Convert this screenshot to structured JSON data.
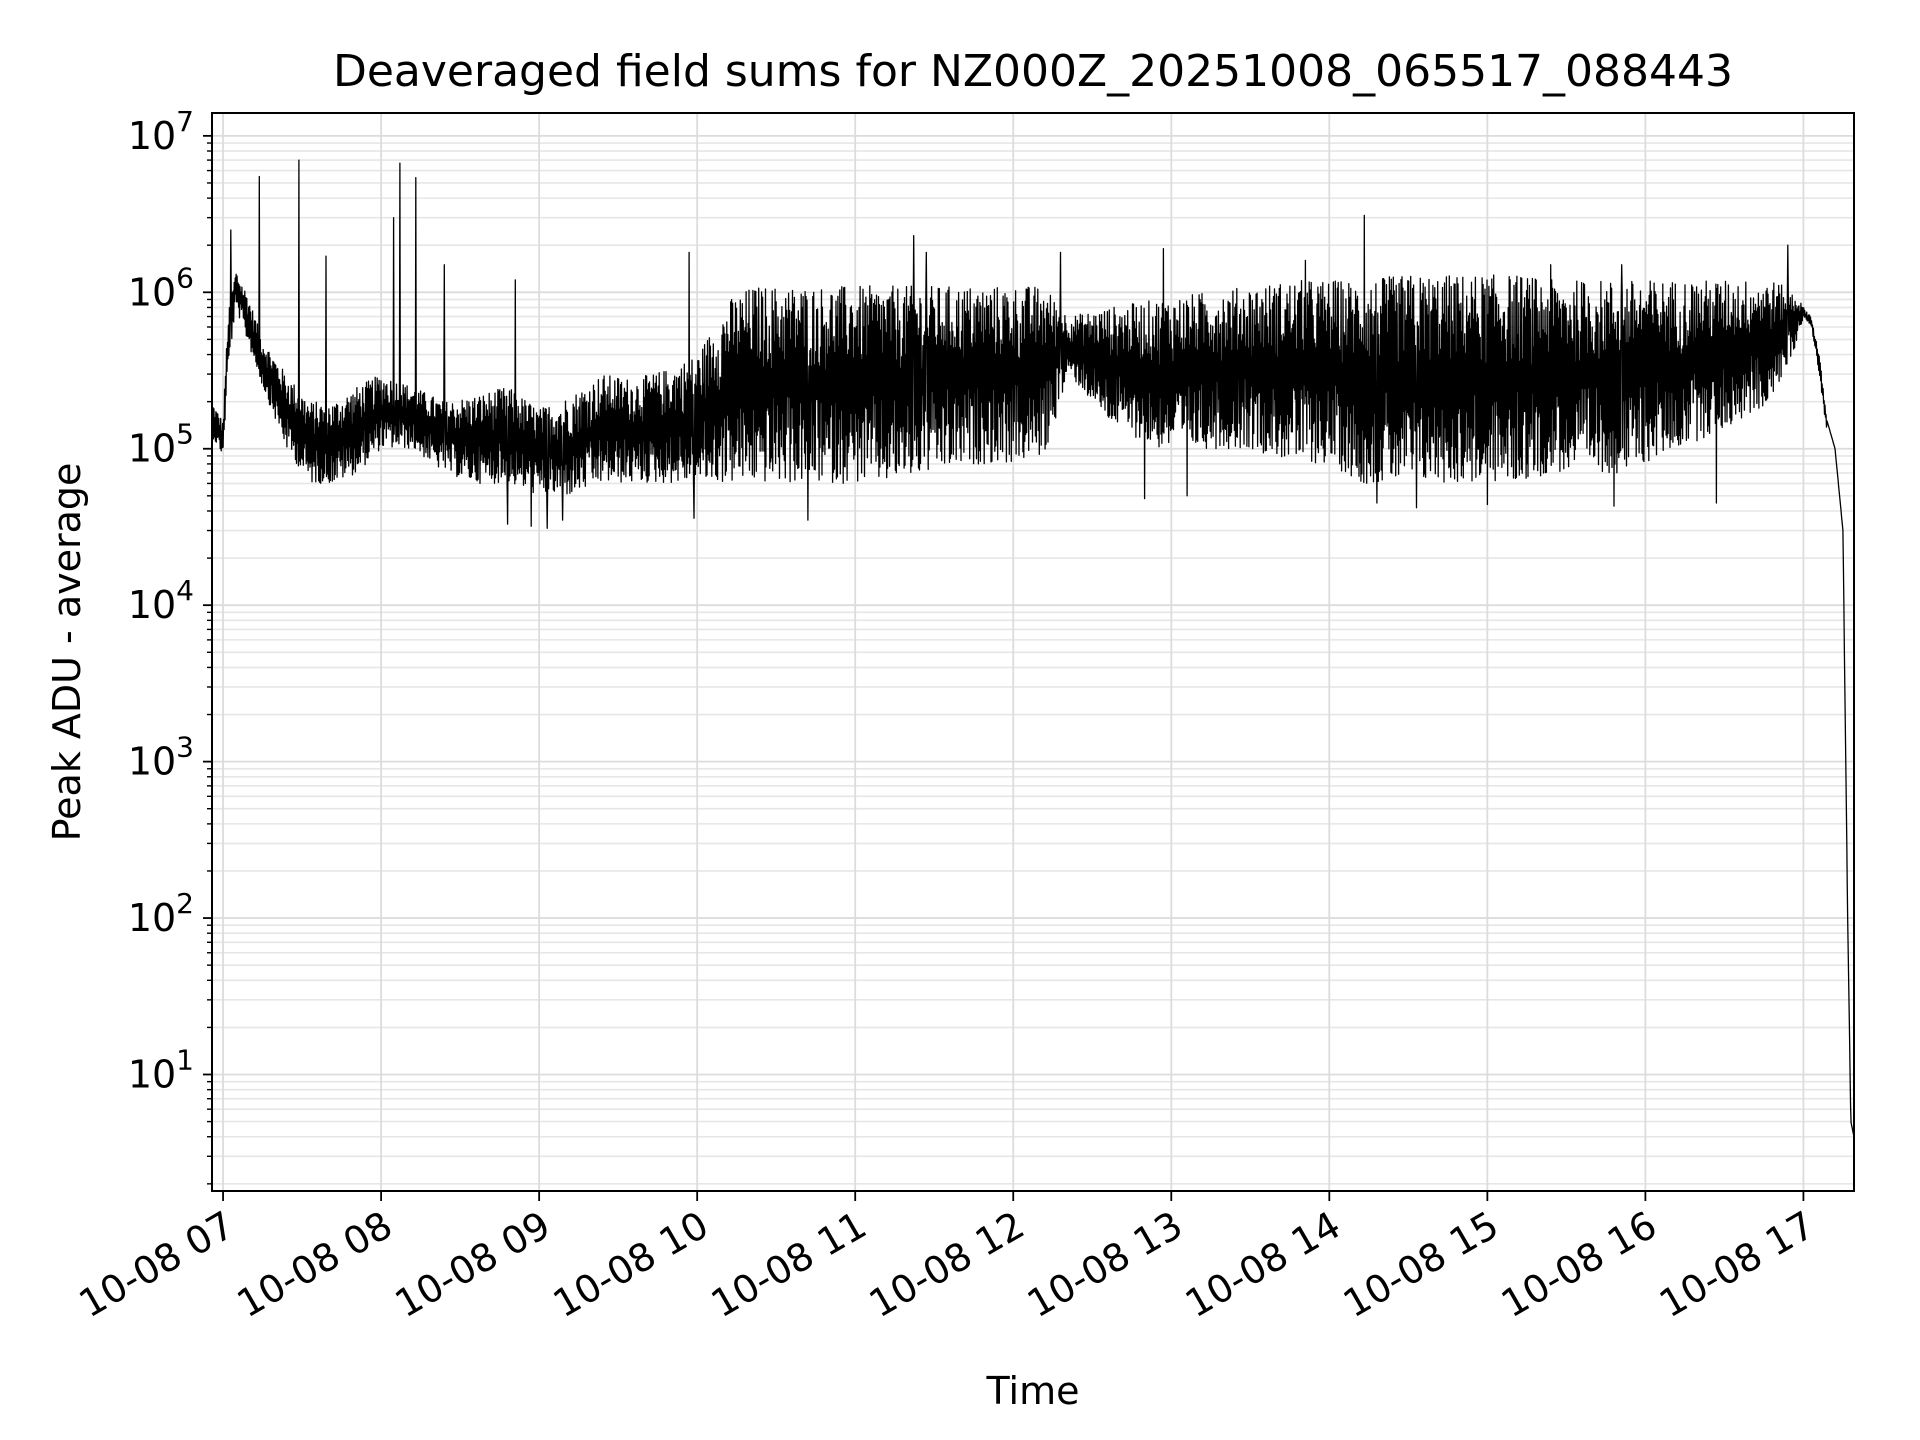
{
  "chart_data": {
    "type": "line",
    "title": "Deaveraged field sums for NZ000Z_20251008_065517_088443",
    "xlabel": "Time",
    "ylabel": "Peak ADU - average",
    "yscale": "log",
    "ylim": [
      1.8,
      14000000
    ],
    "xlim_hours": [
      6.93,
      17.32
    ],
    "grid": true,
    "line_color": "#000000",
    "x_tick_hours": [
      7,
      8,
      9,
      10,
      11,
      12,
      13,
      14,
      15,
      16,
      17
    ],
    "x_tick_labels": [
      "10-08 07",
      "10-08 08",
      "10-08 09",
      "10-08 10",
      "10-08 11",
      "10-08 12",
      "10-08 13",
      "10-08 14",
      "10-08 15",
      "10-08 16",
      "10-08 17"
    ],
    "y_ticks": [
      {
        "value": 10,
        "base": "10",
        "exp": "1"
      },
      {
        "value": 100,
        "base": "10",
        "exp": "2"
      },
      {
        "value": 1000,
        "base": "10",
        "exp": "3"
      },
      {
        "value": 10000,
        "base": "10",
        "exp": "4"
      },
      {
        "value": 100000,
        "base": "10",
        "exp": "5"
      },
      {
        "value": 1000000,
        "base": "10",
        "exp": "6"
      },
      {
        "value": 10000000,
        "base": "10",
        "exp": "7"
      }
    ],
    "envelope": {
      "hours": [
        6.93,
        7.0,
        7.03,
        7.08,
        7.15,
        7.25,
        7.4,
        7.55,
        7.7,
        7.85,
        8.0,
        8.2,
        8.4,
        8.6,
        8.8,
        9.0,
        9.2,
        9.4,
        9.6,
        9.8,
        10.0,
        10.2,
        10.35,
        10.6,
        10.9,
        11.2,
        11.5,
        11.8,
        12.0,
        12.2,
        12.35,
        12.6,
        12.9,
        13.2,
        13.5,
        13.8,
        14.0,
        14.2,
        14.5,
        14.8,
        15.0,
        15.2,
        15.4,
        15.6,
        15.9,
        16.0,
        16.2,
        16.4,
        16.6,
        16.8,
        16.95,
        17.0,
        17.05,
        17.1,
        17.15,
        17.2,
        17.25,
        17.28,
        17.3,
        17.32
      ],
      "upper": [
        200000,
        150000,
        700000,
        1400000,
        1000000,
        500000,
        300000,
        200000,
        200000,
        250000,
        300000,
        250000,
        200000,
        220000,
        250000,
        180000,
        220000,
        300000,
        280000,
        320000,
        400000,
        900000,
        1100000,
        1100000,
        1100000,
        1100000,
        1100000,
        1100000,
        1100000,
        1100000,
        700000,
        800000,
        900000,
        1000000,
        1100000,
        1200000,
        1200000,
        1200000,
        1300000,
        1300000,
        1300000,
        1300000,
        1200000,
        1200000,
        1200000,
        1200000,
        1200000,
        1200000,
        1200000,
        1200000,
        1000000,
        800000,
        700000,
        400000,
        150000,
        100000,
        30000,
        100,
        5,
        4
      ],
      "lower": [
        120000,
        90000,
        300000,
        800000,
        500000,
        250000,
        100000,
        60000,
        60000,
        70000,
        100000,
        100000,
        70000,
        60000,
        60000,
        50000,
        50000,
        60000,
        60000,
        60000,
        60000,
        60000,
        60000,
        60000,
        60000,
        60000,
        70000,
        80000,
        80000,
        90000,
        300000,
        150000,
        100000,
        100000,
        100000,
        80000,
        80000,
        60000,
        60000,
        60000,
        60000,
        60000,
        70000,
        70000,
        70000,
        80000,
        100000,
        120000,
        150000,
        200000,
        450000,
        700000,
        600000,
        300000,
        120000,
        90000,
        20000,
        50,
        4,
        4
      ]
    },
    "spikes": [
      {
        "hour": 7.05,
        "value": 2500000
      },
      {
        "hour": 7.23,
        "value": 5500000
      },
      {
        "hour": 7.48,
        "value": 7000000
      },
      {
        "hour": 7.65,
        "value": 1700000
      },
      {
        "hour": 8.08,
        "value": 3000000
      },
      {
        "hour": 8.12,
        "value": 6700000
      },
      {
        "hour": 8.22,
        "value": 5400000
      },
      {
        "hour": 8.4,
        "value": 1500000
      },
      {
        "hour": 8.85,
        "value": 1200000
      },
      {
        "hour": 9.95,
        "value": 1800000
      },
      {
        "hour": 11.37,
        "value": 2300000
      },
      {
        "hour": 11.45,
        "value": 1800000
      },
      {
        "hour": 12.3,
        "value": 1800000
      },
      {
        "hour": 12.95,
        "value": 1900000
      },
      {
        "hour": 13.85,
        "value": 1600000
      },
      {
        "hour": 14.22,
        "value": 3100000
      },
      {
        "hour": 15.4,
        "value": 1500000
      },
      {
        "hour": 15.85,
        "value": 1500000
      },
      {
        "hour": 16.45,
        "value": 1500000
      },
      {
        "hour": 16.9,
        "value": 2000000
      }
    ],
    "dips": [
      {
        "hour": 8.8,
        "value": 33000
      },
      {
        "hour": 8.95,
        "value": 32000
      },
      {
        "hour": 9.05,
        "value": 31000
      },
      {
        "hour": 9.15,
        "value": 35000
      },
      {
        "hour": 9.98,
        "value": 36000
      },
      {
        "hour": 10.7,
        "value": 35000
      },
      {
        "hour": 12.83,
        "value": 48000
      },
      {
        "hour": 13.1,
        "value": 50000
      },
      {
        "hour": 14.3,
        "value": 45000
      },
      {
        "hour": 14.55,
        "value": 42000
      },
      {
        "hour": 15.0,
        "value": 44000
      },
      {
        "hour": 15.8,
        "value": 43000
      },
      {
        "hour": 16.45,
        "value": 45000
      }
    ]
  }
}
